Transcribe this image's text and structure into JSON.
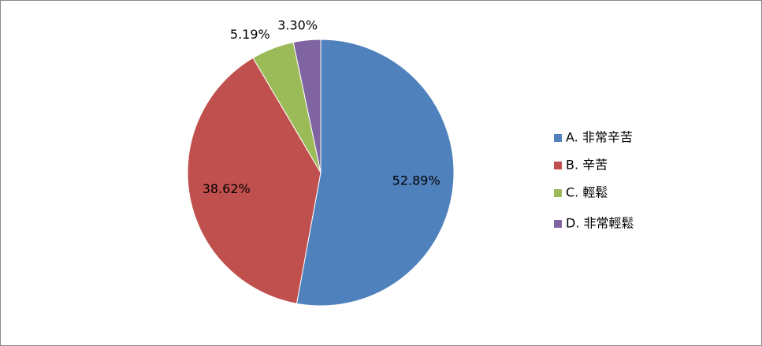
{
  "chart_data": {
    "type": "pie",
    "categories": [
      "A. 非常辛苦",
      "B. 辛苦",
      "C. 輕鬆",
      "D. 非常輕鬆"
    ],
    "values": [
      52.89,
      38.62,
      5.19,
      3.3
    ],
    "value_labels": [
      "52.89%",
      "38.62%",
      "5.19%",
      "3.30%"
    ],
    "colors": [
      "#4f81bd",
      "#c0504d",
      "#9bbb59",
      "#8064a2"
    ],
    "legend": "right"
  }
}
